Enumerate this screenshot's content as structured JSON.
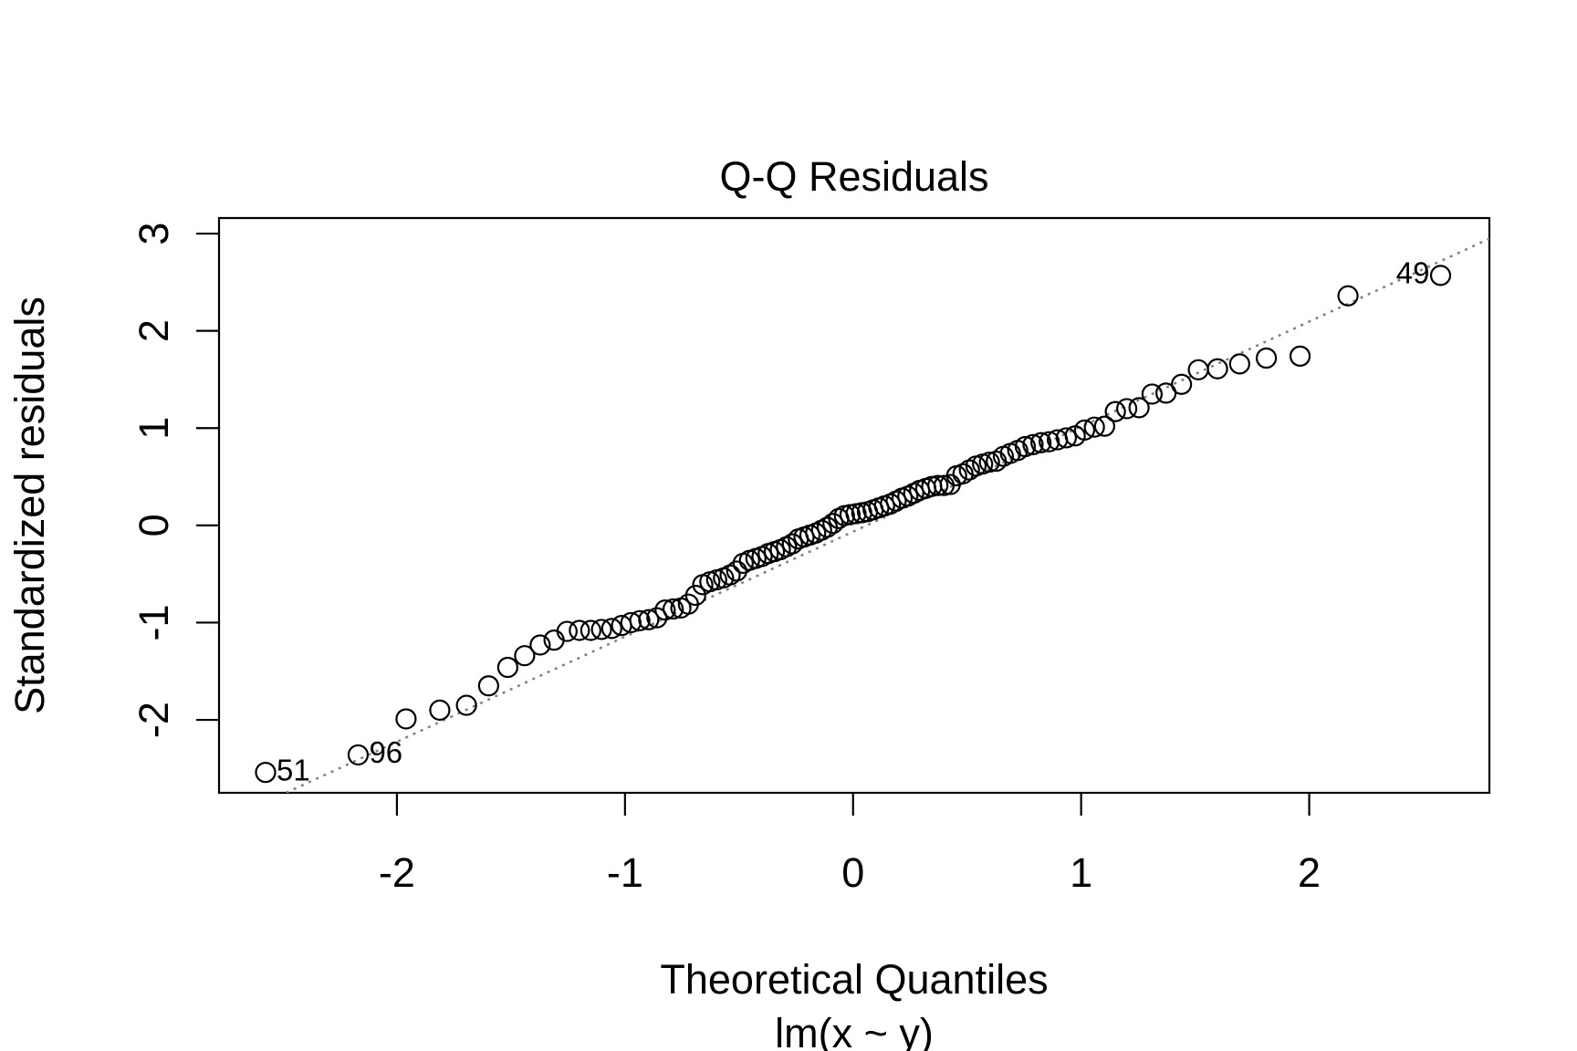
{
  "chart_data": {
    "type": "scatter",
    "title": "Q-Q Residuals",
    "x_label": "Theoretical Quantiles",
    "x_sublabel": "lm(x ~ y)",
    "y_label": "Standardized residuals",
    "xlim": [
      -2.78,
      2.79
    ],
    "ylim": [
      -2.75,
      3.16
    ],
    "xticks": [
      -2,
      -1,
      0,
      1,
      2
    ],
    "yticks": [
      -2,
      -1,
      0,
      1,
      2,
      3
    ],
    "color": "#000000",
    "reference_line": {
      "intercept": -0.065,
      "slope": 1.08,
      "color": "#808080"
    },
    "x": [
      -2.576,
      -2.17,
      -1.96,
      -1.812,
      -1.695,
      -1.598,
      -1.514,
      -1.44,
      -1.372,
      -1.311,
      -1.254,
      -1.2,
      -1.15,
      -1.103,
      -1.058,
      -1.015,
      -0.974,
      -0.935,
      -0.896,
      -0.86,
      -0.824,
      -0.789,
      -0.755,
      -0.722,
      -0.69,
      -0.659,
      -0.628,
      -0.598,
      -0.568,
      -0.539,
      -0.51,
      -0.482,
      -0.454,
      -0.426,
      -0.399,
      -0.372,
      -0.345,
      -0.319,
      -0.292,
      -0.266,
      -0.24,
      -0.215,
      -0.189,
      -0.164,
      -0.138,
      -0.113,
      -0.088,
      -0.063,
      -0.038,
      -0.013,
      0.013,
      0.038,
      0.063,
      0.088,
      0.113,
      0.138,
      0.164,
      0.189,
      0.215,
      0.24,
      0.266,
      0.292,
      0.319,
      0.345,
      0.372,
      0.399,
      0.426,
      0.454,
      0.482,
      0.51,
      0.539,
      0.568,
      0.598,
      0.628,
      0.659,
      0.69,
      0.722,
      0.755,
      0.789,
      0.824,
      0.86,
      0.896,
      0.935,
      0.974,
      1.015,
      1.058,
      1.103,
      1.15,
      1.2,
      1.254,
      1.311,
      1.372,
      1.44,
      1.514,
      1.598,
      1.695,
      1.812,
      1.96,
      2.17,
      2.576
    ],
    "values": [
      -2.54,
      -2.36,
      -1.99,
      -1.9,
      -1.85,
      -1.65,
      -1.46,
      -1.34,
      -1.23,
      -1.18,
      -1.09,
      -1.08,
      -1.08,
      -1.07,
      -1.06,
      -1.03,
      -1.0,
      -0.98,
      -0.97,
      -0.95,
      -0.87,
      -0.86,
      -0.85,
      -0.81,
      -0.72,
      -0.61,
      -0.58,
      -0.56,
      -0.54,
      -0.51,
      -0.47,
      -0.39,
      -0.36,
      -0.34,
      -0.32,
      -0.29,
      -0.27,
      -0.25,
      -0.22,
      -0.19,
      -0.14,
      -0.12,
      -0.1,
      -0.08,
      -0.05,
      -0.02,
      0.02,
      0.07,
      0.1,
      0.11,
      0.12,
      0.13,
      0.14,
      0.16,
      0.18,
      0.2,
      0.22,
      0.25,
      0.28,
      0.3,
      0.33,
      0.36,
      0.38,
      0.4,
      0.41,
      0.41,
      0.42,
      0.51,
      0.53,
      0.57,
      0.61,
      0.63,
      0.65,
      0.66,
      0.71,
      0.74,
      0.77,
      0.81,
      0.83,
      0.85,
      0.86,
      0.88,
      0.9,
      0.92,
      0.98,
      1.01,
      1.02,
      1.17,
      1.2,
      1.21,
      1.35,
      1.36,
      1.45,
      1.6,
      1.61,
      1.66,
      1.72,
      1.74,
      2.36,
      2.57
    ],
    "point_labels": [
      "51",
      "96",
      null,
      null,
      null,
      null,
      null,
      null,
      null,
      null,
      null,
      null,
      null,
      null,
      null,
      null,
      null,
      null,
      null,
      null,
      null,
      null,
      null,
      null,
      null,
      null,
      null,
      null,
      null,
      null,
      null,
      null,
      null,
      null,
      null,
      null,
      null,
      null,
      null,
      null,
      null,
      null,
      null,
      null,
      null,
      null,
      null,
      null,
      null,
      null,
      null,
      null,
      null,
      null,
      null,
      null,
      null,
      null,
      null,
      null,
      null,
      null,
      null,
      null,
      null,
      null,
      null,
      null,
      null,
      null,
      null,
      null,
      null,
      null,
      null,
      null,
      null,
      null,
      null,
      null,
      null,
      null,
      null,
      null,
      null,
      null,
      null,
      null,
      null,
      null,
      null,
      null,
      null,
      null,
      null,
      null,
      null,
      null,
      null,
      "49"
    ]
  }
}
